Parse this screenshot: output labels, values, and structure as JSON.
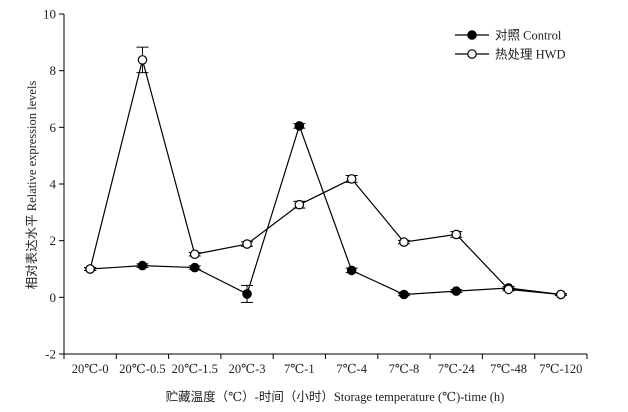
{
  "chart_data": {
    "type": "line",
    "title": "",
    "xlabel": "贮藏温度（℃）-时间（小时）Storage temperature (℃)-time (h)",
    "ylabel": "相对表达水平 Relative expression levels",
    "ylim": [
      -2,
      10
    ],
    "yticks": [
      -2,
      0,
      2,
      4,
      6,
      8,
      10
    ],
    "grid": false,
    "legend_position": "top-right",
    "categories": [
      "20℃-0",
      "20℃-0.5",
      "20℃-1.5",
      "20℃-3",
      "7℃-1",
      "7℃-4",
      "7℃-8",
      "7℃-24",
      "7℃-48",
      "7℃-120"
    ],
    "series": [
      {
        "name": "对照 Control",
        "marker": "filled-circle",
        "values": [
          1.0,
          1.12,
          1.05,
          0.12,
          6.05,
          0.95,
          0.1,
          0.22,
          0.33,
          0.1
        ],
        "errors": [
          0.05,
          0.06,
          0.06,
          0.3,
          0.08,
          0.08,
          0.04,
          0.05,
          0.05,
          0.03
        ]
      },
      {
        "name": "热处理 HWD",
        "marker": "open-circle",
        "values": [
          1.0,
          8.38,
          1.52,
          1.88,
          3.27,
          4.18,
          1.95,
          2.22,
          0.28,
          0.1
        ],
        "errors": [
          0.05,
          0.45,
          0.06,
          0.08,
          0.12,
          0.12,
          0.06,
          0.1,
          0.05,
          0.03
        ]
      }
    ],
    "colors": {
      "line": "#000000",
      "open_fill": "#ffffff"
    }
  }
}
